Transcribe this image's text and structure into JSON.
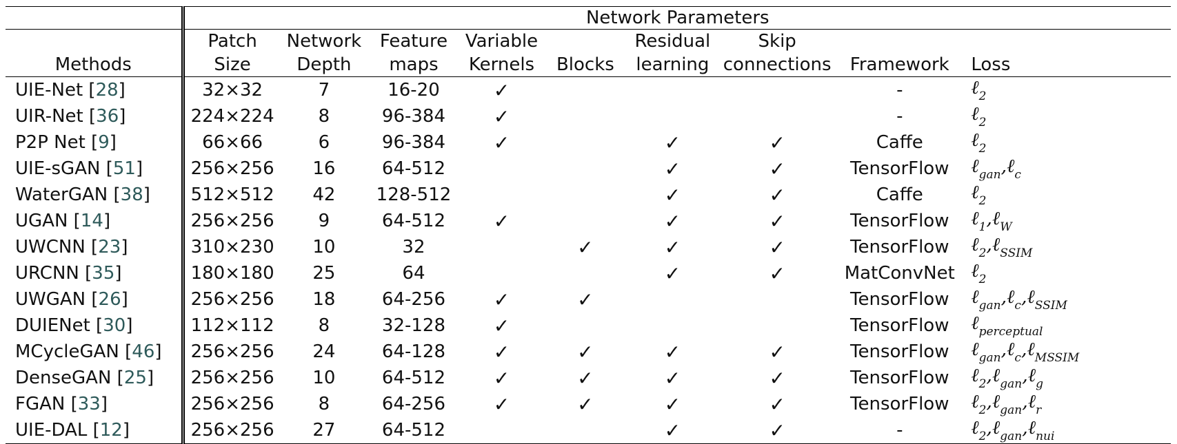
{
  "table": {
    "group_header": "Network Parameters",
    "headers": {
      "methods": "Methods",
      "patch_size": [
        "Patch",
        "Size"
      ],
      "network_depth": [
        "Network",
        "Depth"
      ],
      "feature_maps": [
        "Feature",
        "maps"
      ],
      "variable_kernels": [
        "Variable",
        "Kernels"
      ],
      "blocks": "Blocks",
      "residual_learning": [
        "Residual",
        "learning"
      ],
      "skip_connections": [
        "Skip",
        "connections"
      ],
      "framework": "Framework",
      "loss": "Loss"
    },
    "check_symbol": "✓",
    "rows": [
      {
        "method": "UIE-Net",
        "ref": "28",
        "patch": "32×32",
        "depth": "7",
        "features": "16-20",
        "variable_kernels": true,
        "blocks": false,
        "residual": false,
        "skip": false,
        "framework": "-",
        "loss": [
          {
            "b": "ℓ",
            "s": "2"
          }
        ]
      },
      {
        "method": "UIR-Net",
        "ref": "36",
        "patch": "224×224",
        "depth": "8",
        "features": "96-384",
        "variable_kernels": true,
        "blocks": false,
        "residual": false,
        "skip": false,
        "framework": "-",
        "loss": [
          {
            "b": "ℓ",
            "s": "2"
          }
        ]
      },
      {
        "method": "P2P Net",
        "ref": "9",
        "patch": "66×66",
        "depth": "6",
        "features": "96-384",
        "variable_kernels": true,
        "blocks": false,
        "residual": true,
        "skip": true,
        "framework": "Caffe",
        "loss": [
          {
            "b": "ℓ",
            "s": "2"
          }
        ]
      },
      {
        "method": "UIE-sGAN",
        "ref": "51",
        "patch": "256×256",
        "depth": "16",
        "features": "64-512",
        "variable_kernels": false,
        "blocks": false,
        "residual": true,
        "skip": true,
        "framework": "TensorFlow",
        "loss": [
          {
            "b": "ℓ",
            "s": "gan"
          },
          {
            "b": "ℓ",
            "s": "c"
          }
        ]
      },
      {
        "method": "WaterGAN",
        "ref": "38",
        "patch": "512×512",
        "depth": "42",
        "features": "128-512",
        "variable_kernels": false,
        "blocks": false,
        "residual": true,
        "skip": true,
        "framework": "Caffe",
        "loss": [
          {
            "b": "ℓ",
            "s": "2"
          }
        ]
      },
      {
        "method": "UGAN",
        "ref": "14",
        "patch": "256×256",
        "depth": "9",
        "features": "64-512",
        "variable_kernels": true,
        "blocks": false,
        "residual": true,
        "skip": true,
        "framework": "TensorFlow",
        "loss": [
          {
            "b": "ℓ",
            "s": "1"
          },
          {
            "b": "ℓ",
            "s": "W"
          }
        ]
      },
      {
        "method": "UWCNN",
        "ref": "23",
        "patch": "310×230",
        "depth": "10",
        "features": "32",
        "variable_kernels": false,
        "blocks": true,
        "residual": true,
        "skip": true,
        "framework": "TensorFlow",
        "loss": [
          {
            "b": "ℓ",
            "s": "2"
          },
          {
            "b": "ℓ",
            "s": "SSIM"
          }
        ]
      },
      {
        "method": "URCNN",
        "ref": "35",
        "patch": "180×180",
        "depth": "25",
        "features": "64",
        "variable_kernels": false,
        "blocks": false,
        "residual": true,
        "skip": true,
        "framework": "MatConvNet",
        "loss": [
          {
            "b": "ℓ",
            "s": "2"
          }
        ]
      },
      {
        "method": "UWGAN",
        "ref": "26",
        "patch": "256×256",
        "depth": "18",
        "features": "64-256",
        "variable_kernels": true,
        "blocks": true,
        "residual": false,
        "skip": false,
        "framework": "TensorFlow",
        "loss": [
          {
            "b": "ℓ",
            "s": "gan"
          },
          {
            "b": "ℓ",
            "s": "c"
          },
          {
            "b": "ℓ",
            "s": "SSIM"
          }
        ]
      },
      {
        "method": "DUIENet",
        "ref": "30",
        "patch": "112×112",
        "depth": "8",
        "features": "32-128",
        "variable_kernels": true,
        "blocks": false,
        "residual": false,
        "skip": false,
        "framework": "TensorFlow",
        "loss": [
          {
            "b": "ℓ",
            "s": "perceptual"
          }
        ]
      },
      {
        "method": "MCycleGAN",
        "ref": "46",
        "patch": "256×256",
        "depth": "24",
        "features": "64-128",
        "variable_kernels": true,
        "blocks": true,
        "residual": true,
        "skip": true,
        "framework": "TensorFlow",
        "loss": [
          {
            "b": "ℓ",
            "s": "gan"
          },
          {
            "b": "ℓ",
            "s": "c"
          },
          {
            "b": "ℓ",
            "s": "MSSIM"
          }
        ]
      },
      {
        "method": "DenseGAN",
        "ref": "25",
        "patch": "256×256",
        "depth": "10",
        "features": "64-512",
        "variable_kernels": true,
        "blocks": true,
        "residual": true,
        "skip": true,
        "framework": "TensorFlow",
        "loss": [
          {
            "b": "ℓ",
            "s": "2"
          },
          {
            "b": "ℓ",
            "s": "gan"
          },
          {
            "b": "ℓ",
            "s": "g"
          }
        ]
      },
      {
        "method": "FGAN",
        "ref": "33",
        "patch": "256×256",
        "depth": "8",
        "features": "64-256",
        "variable_kernels": true,
        "blocks": true,
        "residual": true,
        "skip": true,
        "framework": "TensorFlow",
        "loss": [
          {
            "b": "ℓ",
            "s": "2"
          },
          {
            "b": "ℓ",
            "s": "gan"
          },
          {
            "b": "ℓ",
            "s": "r"
          }
        ]
      },
      {
        "method": "UIE-DAL",
        "ref": "12",
        "patch": "256×256",
        "depth": "27",
        "features": "64-512",
        "variable_kernels": false,
        "blocks": false,
        "residual": true,
        "skip": true,
        "framework": "-",
        "loss": [
          {
            "b": "ℓ",
            "s": "2"
          },
          {
            "b": "ℓ",
            "s": "gan"
          },
          {
            "b": "ℓ",
            "s": "nui"
          }
        ]
      }
    ]
  },
  "colors": {
    "citation": "#2e5a5a",
    "rule": "#000000",
    "text": "#111111"
  }
}
